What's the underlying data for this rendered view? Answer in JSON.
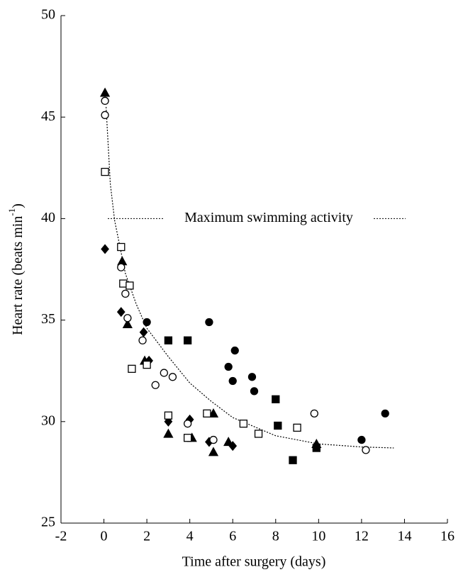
{
  "chart_data": {
    "type": "scatter",
    "xlabel": "Time after surgery (days)",
    "ylabel": {
      "text": "Heart rate (beats min",
      "sup": "-1",
      "end": ")"
    },
    "xlim": [
      -2,
      16
    ],
    "xticks": [
      -2,
      0,
      2,
      4,
      6,
      8,
      10,
      12,
      14,
      16
    ],
    "ylim": [
      25,
      50
    ],
    "yticks": [
      25,
      30,
      35,
      40,
      45,
      50
    ],
    "grid": false,
    "annotation": {
      "text": "Maximum swimming activity",
      "y": 40
    },
    "series": [
      {
        "marker": "circle",
        "filled": true,
        "color": "#000000",
        "x": [
          2.0,
          4.9,
          5.8,
          6.1,
          6.0,
          6.9,
          7.0,
          12.0,
          13.1
        ],
        "values": [
          34.9,
          34.9,
          32.7,
          33.5,
          32.0,
          32.2,
          31.5,
          29.1,
          30.4
        ]
      },
      {
        "marker": "square",
        "filled": true,
        "color": "#000000",
        "x": [
          3.0,
          3.9,
          8.0,
          8.1,
          8.8,
          9.9
        ],
        "values": [
          34.0,
          34.0,
          31.1,
          29.8,
          28.1,
          28.7
        ]
      },
      {
        "marker": "triangle",
        "filled": true,
        "color": "#000000",
        "x": [
          0.05,
          0.85,
          1.1,
          1.9,
          3.0,
          4.1,
          5.1,
          5.1,
          5.8,
          9.9
        ],
        "values": [
          46.2,
          37.9,
          34.8,
          33.0,
          29.4,
          29.2,
          30.4,
          28.5,
          29.0,
          28.9
        ]
      },
      {
        "marker": "diamond",
        "filled": true,
        "color": "#000000",
        "x": [
          0.05,
          0.8,
          1.85,
          2.1,
          3.0,
          4.0,
          4.9,
          6.0
        ],
        "values": [
          38.5,
          35.4,
          34.4,
          33.0,
          30.0,
          30.1,
          29.0,
          28.8
        ]
      },
      {
        "marker": "circle",
        "filled": false,
        "color": "#000000",
        "x": [
          0.05,
          0.05,
          0.8,
          1.0,
          1.1,
          1.8,
          2.4,
          2.8,
          3.2,
          3.9,
          5.1,
          9.8,
          12.2
        ],
        "values": [
          45.8,
          45.1,
          37.6,
          36.3,
          35.1,
          34.0,
          31.8,
          32.4,
          32.2,
          29.9,
          29.1,
          30.4,
          28.6
        ]
      },
      {
        "marker": "square",
        "filled": false,
        "color": "#000000",
        "x": [
          0.05,
          0.8,
          0.9,
          1.2,
          1.3,
          2.0,
          3.0,
          3.9,
          4.8,
          6.5,
          7.2,
          9.0
        ],
        "values": [
          42.3,
          38.6,
          36.8,
          36.7,
          32.6,
          32.8,
          30.3,
          29.2,
          30.4,
          29.9,
          29.4,
          29.7
        ]
      }
    ],
    "fit": {
      "color": "#000000",
      "x": [
        0.1,
        0.3,
        0.5,
        1.0,
        1.5,
        2.0,
        3.0,
        4.0,
        5.0,
        6.0,
        8.0,
        10.0,
        12.0,
        13.5
      ],
      "values": [
        45.5,
        41.7,
        39.9,
        37.3,
        35.8,
        34.6,
        33.2,
        31.9,
        31.0,
        30.2,
        29.3,
        28.9,
        28.75,
        28.7
      ]
    }
  }
}
